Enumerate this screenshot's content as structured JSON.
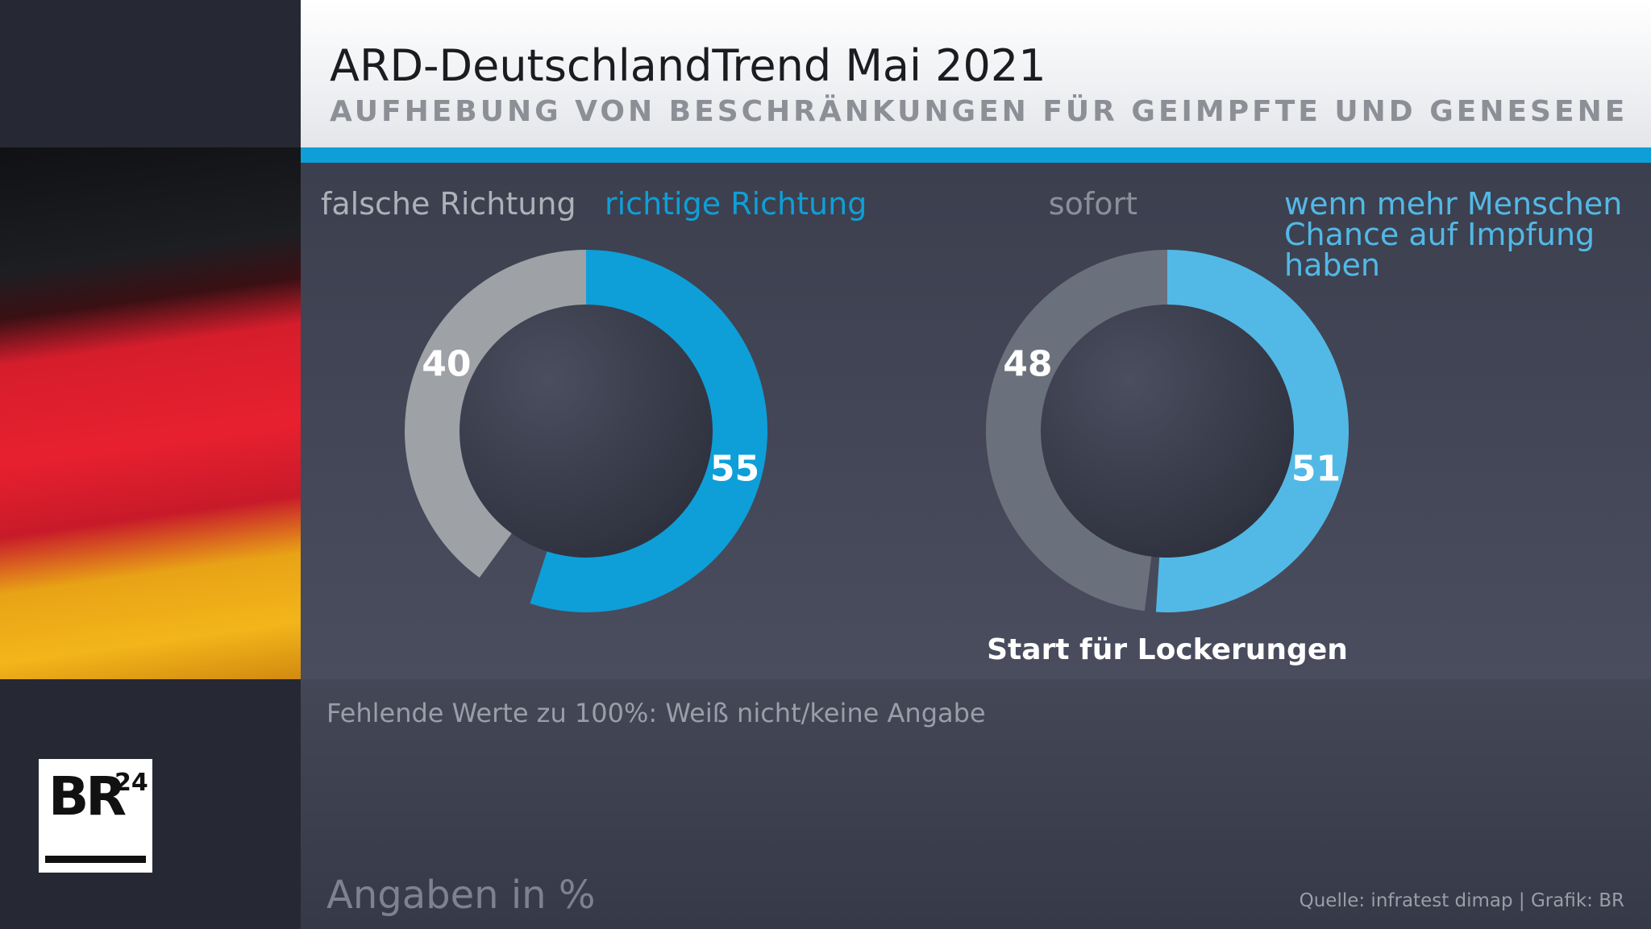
{
  "header": {
    "title": "ARD-DeutschlandTrend Mai 2021",
    "subtitle": "AUFHEBUNG VON BESCHRÄNKUNGEN FÜR GEIMPFTE UND GENESENE"
  },
  "chart_data": [
    {
      "type": "donut",
      "categories": [
        "falsche Richtung",
        "richtige Richtung"
      ],
      "values": [
        40,
        55
      ],
      "colors": [
        "#9ea1a6",
        "#0e9fd8"
      ]
    },
    {
      "type": "donut",
      "categories": [
        "sofort",
        "wenn mehr Menschen Chance auf Impfung haben"
      ],
      "values": [
        48,
        51
      ],
      "colors": [
        "#6b717c",
        "#52b9e6"
      ],
      "caption": "Start für Lockerungen"
    }
  ],
  "footer": {
    "note": "Fehlende Werte zu 100%: Weiß nicht/keine Angabe",
    "units": "Angaben in %",
    "source": "Quelle: infratest dimap | Grafik: BR"
  },
  "logo": {
    "text": "BR",
    "superscript": "24"
  }
}
